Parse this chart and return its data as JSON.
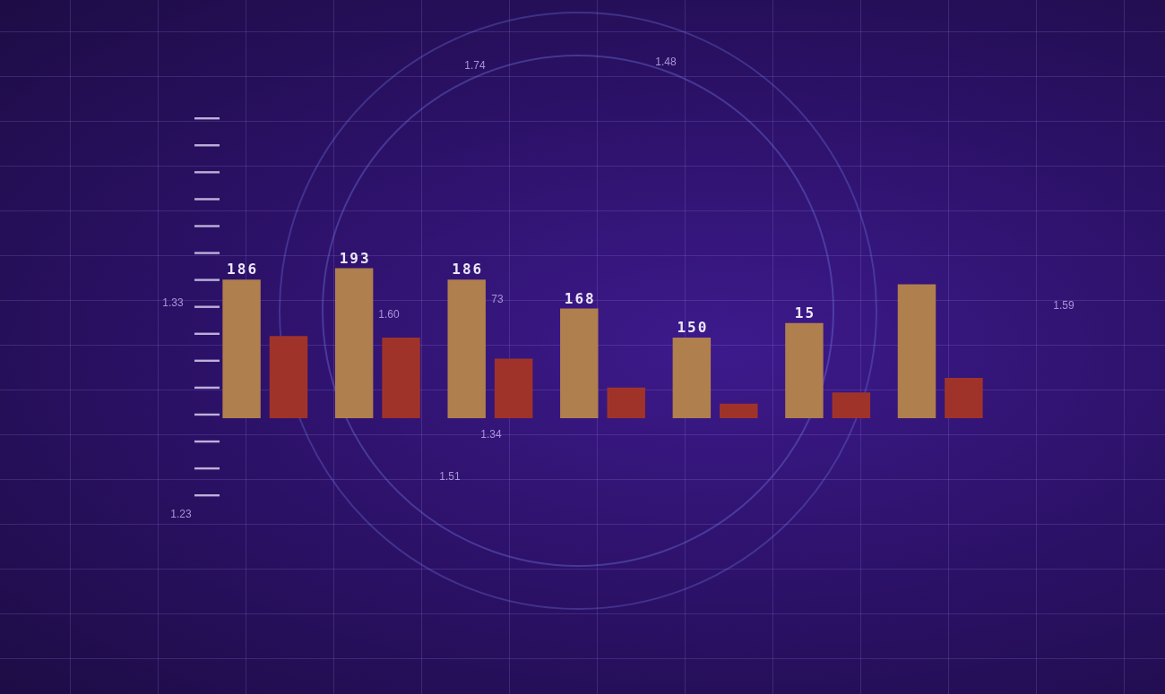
{
  "chart_data": {
    "type": "bar",
    "categories": [
      null,
      null,
      null,
      null,
      null,
      null,
      null
    ],
    "series": [
      {
        "color": "#b07f4e",
        "values": [
          186,
          193,
          186,
          168,
          150,
          159,
          183
        ],
        "value_labels": [
          "186",
          "193",
          "186",
          "168",
          "150",
          null,
          null
        ]
      },
      {
        "color": "#a03329",
        "values": [
          151,
          150,
          137,
          119,
          109,
          116,
          125
        ]
      }
    ],
    "tick_labels": false,
    "annotations": [
      "1.74",
      "1.48",
      "1.33",
      "1.60",
      "73",
      "1.34",
      "1.51",
      "1.23",
      "1.59",
      {
        "text": "15",
        "y": 159
      }
    ]
  }
}
